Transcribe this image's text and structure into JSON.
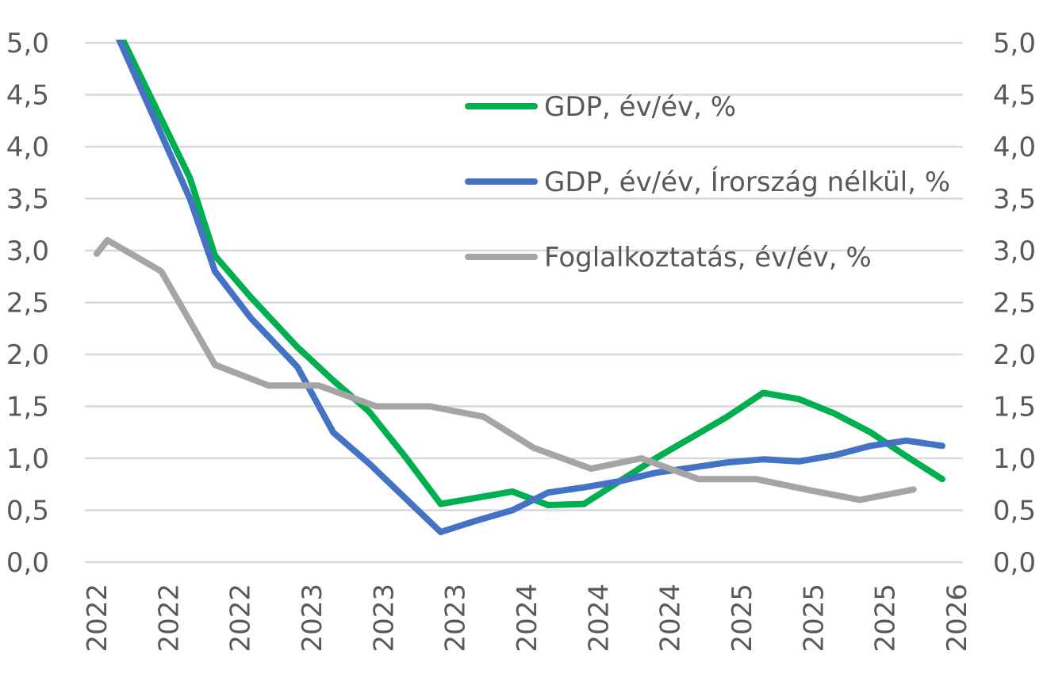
{
  "chart_data": {
    "type": "line",
    "title": "",
    "xlabel": "",
    "ylabel": "",
    "ylim": [
      0,
      5
    ],
    "yticks": [
      "0,0",
      "0,5",
      "1,0",
      "1,5",
      "2,0",
      "2,5",
      "3,0",
      "3,5",
      "4,0",
      "4,5",
      "5,0"
    ],
    "y2ticks": [
      "0,0",
      "0,5",
      "1,0",
      "1,5",
      "2,0",
      "2,5",
      "3,0",
      "3,5",
      "4,0",
      "4,5",
      "5,0"
    ],
    "categories": [
      "2022",
      "2022",
      "2022",
      "2023",
      "2023",
      "2023",
      "2024",
      "2024",
      "2024",
      "2025",
      "2025",
      "2025",
      "2026"
    ],
    "grid": true,
    "legend_position": "top-center",
    "series": [
      {
        "name": "GDP, év/év, %",
        "color": "#00b050",
        "x": [
          0.35,
          1.3,
          1.65,
          2.15,
          2.8,
          3.3,
          3.8,
          4.3,
          4.8,
          5.3,
          5.8,
          6.3,
          6.8,
          7.3,
          7.8,
          8.3,
          8.8,
          9.3,
          9.8,
          10.3,
          10.8,
          11.3,
          11.8
        ],
        "values": [
          5.05,
          3.7,
          2.95,
          2.55,
          2.07,
          1.75,
          1.45,
          1.02,
          0.56,
          0.62,
          0.68,
          0.55,
          0.56,
          0.78,
          1.0,
          1.2,
          1.4,
          1.63,
          1.57,
          1.43,
          1.25,
          1.02,
          0.8
        ]
      },
      {
        "name": "GDP, év/év, Írország nélkül, %",
        "color": "#4472c4",
        "x": [
          0.3,
          1.3,
          1.65,
          2.15,
          2.8,
          3.3,
          3.8,
          4.3,
          4.8,
          5.3,
          5.8,
          6.3,
          6.8,
          7.3,
          7.8,
          8.3,
          8.8,
          9.3,
          9.8,
          10.3,
          10.8,
          11.3,
          11.8
        ],
        "values": [
          5.05,
          3.5,
          2.8,
          2.35,
          1.88,
          1.25,
          0.95,
          0.62,
          0.29,
          0.4,
          0.5,
          0.67,
          0.72,
          0.78,
          0.86,
          0.91,
          0.96,
          0.99,
          0.97,
          1.03,
          1.12,
          1.17,
          1.12
        ]
      },
      {
        "name": "Foglalkoztatás, év/év, %",
        "color": "#a5a5a5",
        "x": [
          0.0,
          0.15,
          0.9,
          1.65,
          2.4,
          3.1,
          3.9,
          4.65,
          5.4,
          6.1,
          6.9,
          7.6,
          8.4,
          9.2,
          9.9,
          10.65,
          11.4
        ],
        "values": [
          2.97,
          3.1,
          2.8,
          1.9,
          1.7,
          1.7,
          1.5,
          1.5,
          1.4,
          1.1,
          0.9,
          1.0,
          0.8,
          0.8,
          0.7,
          0.6,
          0.7
        ]
      }
    ]
  }
}
